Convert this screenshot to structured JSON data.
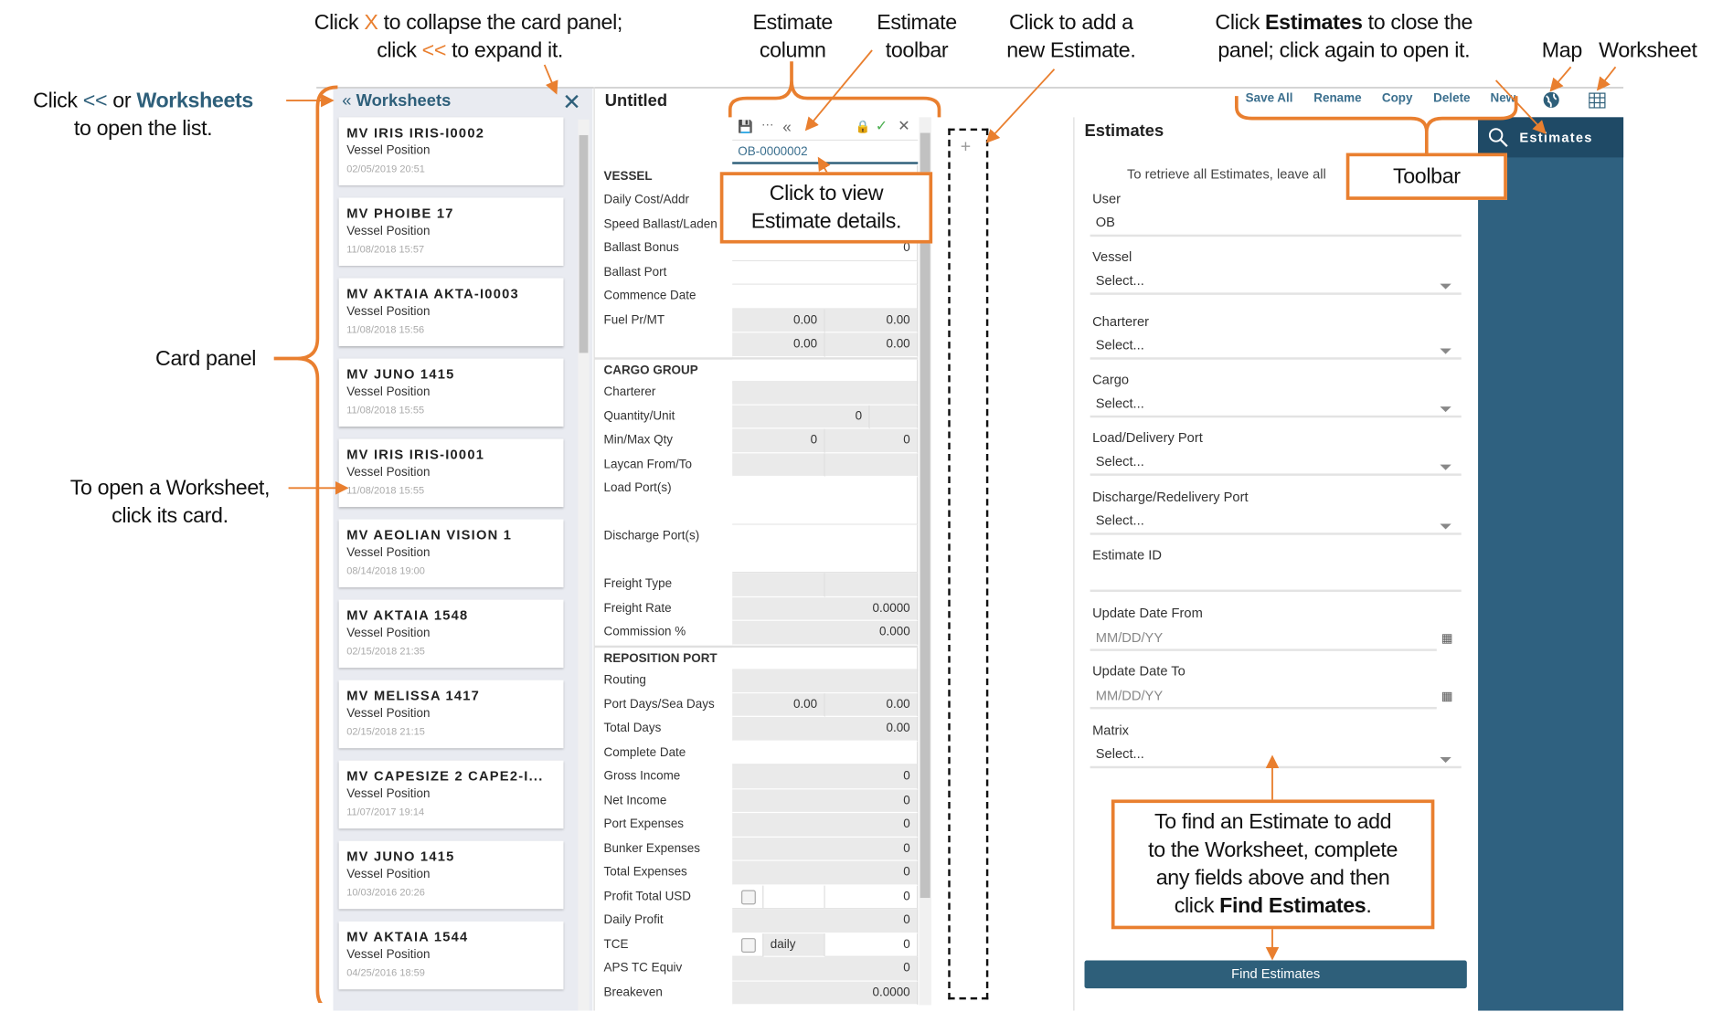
{
  "annotations": {
    "collapse_line1_a": "Click ",
    "collapse_x": "X",
    "collapse_line1_b": " to collapse the card panel;",
    "collapse_line2_a": "click ",
    "collapse_chev": "<<",
    "collapse_line2_b": " to expand it.",
    "estimate_column": [
      "Estimate",
      "column"
    ],
    "estimate_toolbar": [
      "Estimate",
      "toolbar"
    ],
    "add_estimate": [
      "Click to add a",
      "new Estimate."
    ],
    "estimates_close_a": "Click ",
    "estimates_close_bold": "Estimates",
    "estimates_close_b": " to close the",
    "estimates_close_line2": "panel; click again to open it.",
    "map": "Map",
    "worksheet": "Worksheet",
    "open_list_a": "Click ",
    "open_list_chev": "<<",
    "open_list_b": " or ",
    "open_list_bold": "Worksheets",
    "open_list_line2": "to open the list.",
    "card_panel": "Card panel",
    "open_worksheet": [
      "To open a Worksheet,",
      "click its card."
    ],
    "view_details": [
      "Click to view",
      "Estimate details."
    ],
    "toolbar": "Toolbar",
    "find_help": [
      "To find an Estimate to add",
      "to the Worksheet, complete",
      "any fields above and then"
    ],
    "find_help_last_a": "click ",
    "find_help_last_bold": "Find Estimates",
    "find_help_last_b": "."
  },
  "card_panel": {
    "title": "Worksheets",
    "cards": [
      {
        "name": "MV IRIS IRIS-I0002",
        "type": "Vessel Position",
        "date": "02/05/2019 20:51"
      },
      {
        "name": "MV PHOIBE 17",
        "type": "Vessel Position",
        "date": "11/08/2018 15:57"
      },
      {
        "name": "MV AKTAIA AKTA-I0003",
        "type": "Vessel Position",
        "date": "11/08/2018 15:56"
      },
      {
        "name": "MV JUNO 1415",
        "type": "Vessel Position",
        "date": "11/08/2018 15:55"
      },
      {
        "name": "MV IRIS IRIS-I0001",
        "type": "Vessel Position",
        "date": "11/08/2018 15:55"
      },
      {
        "name": "MV AEOLIAN VISION 1",
        "type": "Vessel Position",
        "date": "08/14/2018 19:00"
      },
      {
        "name": "MV AKTAIA 1548",
        "type": "Vessel Position",
        "date": "02/15/2018 21:35"
      },
      {
        "name": "MV MELISSA 1417",
        "type": "Vessel Position",
        "date": "02/15/2018 21:15"
      },
      {
        "name": "MV CAPESIZE 2 CAPE2-I...",
        "type": "Vessel Position",
        "date": "11/07/2017 19:14"
      },
      {
        "name": "MV JUNO 1415",
        "type": "Vessel Position",
        "date": "10/03/2016 20:26"
      },
      {
        "name": "MV AKTAIA 1544",
        "type": "Vessel Position",
        "date": "04/25/2016 18:59"
      }
    ]
  },
  "worksheet": {
    "title": "Untitled",
    "estimate_id": "OB-0000002",
    "rows": [
      {
        "label": "VESSEL",
        "section": true,
        "cells": [
          {
            "v": "",
            "c": "w",
            "w": 1
          }
        ]
      },
      {
        "label": "Daily Cost/Addr",
        "cells": [
          {
            "v": "",
            "c": "w",
            "w": 1
          }
        ]
      },
      {
        "label": "Speed Ballast/Laden",
        "cells": [
          {
            "v": "",
            "c": "w",
            "w": 1
          }
        ]
      },
      {
        "label": "Ballast Bonus",
        "cells": [
          {
            "v": "0",
            "c": "w",
            "w": 1
          }
        ]
      },
      {
        "label": "Ballast Port",
        "cells": [
          {
            "v": "",
            "c": "w",
            "w": 1
          }
        ]
      },
      {
        "label": "Commence Date",
        "cells": [
          {
            "v": "",
            "c": "w",
            "w": 1
          }
        ]
      },
      {
        "label": "Fuel Pr/MT",
        "cells": [
          {
            "v": "0.00",
            "c": "g",
            "w": 0.5
          },
          {
            "v": "0.00",
            "c": "g",
            "w": 0.5
          }
        ]
      },
      {
        "label": "",
        "cells": [
          {
            "v": "0.00",
            "c": "g",
            "w": 0.5
          },
          {
            "v": "0.00",
            "c": "g",
            "w": 0.5
          }
        ]
      },
      {
        "label": "CARGO GROUP",
        "section": true,
        "cells": [
          {
            "v": "",
            "c": "w",
            "w": 1
          }
        ]
      },
      {
        "label": "Charterer",
        "cells": [
          {
            "v": "",
            "c": "g",
            "w": 1
          }
        ]
      },
      {
        "label": "Quantity/Unit",
        "cells": [
          {
            "v": "0",
            "c": "g",
            "w": 0.74
          },
          {
            "v": "",
            "c": "g",
            "w": 0.26
          }
        ]
      },
      {
        "label": "Min/Max Qty",
        "cells": [
          {
            "v": "0",
            "c": "g",
            "w": 0.5
          },
          {
            "v": "0",
            "c": "g",
            "w": 0.5
          }
        ]
      },
      {
        "label": "Laycan From/To",
        "cells": [
          {
            "v": "",
            "c": "g",
            "w": 0.5
          },
          {
            "v": "",
            "c": "g",
            "w": 0.5
          }
        ]
      },
      {
        "label": "Load Port(s)",
        "tall": true,
        "cells": [
          {
            "v": "",
            "c": "w",
            "w": 1
          }
        ]
      },
      {
        "label": "Discharge Port(s)",
        "tall": true,
        "cells": [
          {
            "v": "",
            "c": "w",
            "w": 1
          }
        ]
      },
      {
        "label": "Freight Type",
        "cells": [
          {
            "v": "",
            "c": "g",
            "w": 0.5
          },
          {
            "v": "",
            "c": "g",
            "w": 0.5
          }
        ]
      },
      {
        "label": "Freight Rate",
        "cells": [
          {
            "v": "0.0000",
            "c": "g",
            "w": 1
          }
        ]
      },
      {
        "label": "Commission %",
        "cells": [
          {
            "v": "0.000",
            "c": "g",
            "w": 1
          }
        ]
      },
      {
        "label": "REPOSITION PORT",
        "section": true,
        "cells": [
          {
            "v": "",
            "c": "w",
            "w": 1
          }
        ]
      },
      {
        "label": "Routing",
        "cells": [
          {
            "v": "",
            "c": "g",
            "w": 1
          }
        ]
      },
      {
        "label": "Port Days/Sea Days",
        "cells": [
          {
            "v": "0.00",
            "c": "g",
            "w": 0.5
          },
          {
            "v": "0.00",
            "c": "g",
            "w": 0.5
          }
        ]
      },
      {
        "label": "Total Days",
        "cells": [
          {
            "v": "0.00",
            "c": "g",
            "w": 1
          }
        ]
      },
      {
        "label": "Complete Date",
        "cells": [
          {
            "v": "",
            "c": "w",
            "w": 1
          }
        ]
      },
      {
        "label": "Gross Income",
        "cells": [
          {
            "v": "0",
            "c": "g",
            "w": 1
          }
        ]
      },
      {
        "label": "Net Income",
        "cells": [
          {
            "v": "0",
            "c": "g",
            "w": 1
          }
        ]
      },
      {
        "label": "Port Expenses",
        "cells": [
          {
            "v": "0",
            "c": "g",
            "w": 1
          }
        ]
      },
      {
        "label": "Bunker Expenses",
        "cells": [
          {
            "v": "0",
            "c": "g",
            "w": 1
          }
        ]
      },
      {
        "label": "Total Expenses",
        "cells": [
          {
            "v": "0",
            "c": "g",
            "w": 1
          }
        ]
      },
      {
        "label": "Profit Total USD",
        "cells": [
          {
            "cb": true,
            "c": "w",
            "w": 0.17
          },
          {
            "v": "",
            "c": "w",
            "w": 0.33
          },
          {
            "v": "0",
            "c": "w",
            "w": 0.5
          }
        ]
      },
      {
        "label": "Daily Profit",
        "cells": [
          {
            "v": "0",
            "c": "g",
            "w": 1
          }
        ]
      },
      {
        "label": "TCE",
        "cells": [
          {
            "cb": true,
            "c": "w",
            "w": 0.17
          },
          {
            "v": "daily",
            "c": "g",
            "w": 0.33,
            "left": true
          },
          {
            "v": "0",
            "c": "w",
            "w": 0.5
          }
        ]
      },
      {
        "label": "APS TC Equiv",
        "cells": [
          {
            "v": "0",
            "c": "g",
            "w": 1
          }
        ]
      },
      {
        "label": "Breakeven",
        "cells": [
          {
            "v": "0.0000",
            "c": "g",
            "w": 1
          }
        ]
      }
    ]
  },
  "toolbar": {
    "save_all": "Save All",
    "rename": "Rename",
    "copy": "Copy",
    "delete": "Delete",
    "new": "New",
    "map_icon": "globe-icon",
    "worksheet_icon": "grid-icon"
  },
  "estimates_panel": {
    "title": "Estimates",
    "hint": "To retrieve all Estimates, leave all",
    "fields": [
      {
        "label": "User",
        "value": "OB"
      },
      {
        "label": "Vessel",
        "value": "Select..."
      },
      {
        "label": "Charterer",
        "value": "Select..."
      },
      {
        "label": "Cargo",
        "value": "Select..."
      },
      {
        "label": "Load/Delivery Port",
        "value": "Select..."
      },
      {
        "label": "Discharge/Redelivery Port",
        "value": "Select..."
      },
      {
        "label": "Estimate ID",
        "value": ""
      },
      {
        "label": "Update Date From",
        "placeholder": "MM/DD/YY"
      },
      {
        "label": "Update Date To",
        "placeholder": "MM/DD/YY"
      },
      {
        "label": "Matrix",
        "value": "Select..."
      }
    ],
    "find_button": "Find Estimates"
  },
  "sidebar": {
    "estimates_label": "Estimates"
  },
  "colors": {
    "accent_orange": "#e97f2f",
    "brand_blue": "#2e5f7a",
    "sidebar_blue": "#2f6180",
    "sidebar_active": "#1f4a66"
  }
}
